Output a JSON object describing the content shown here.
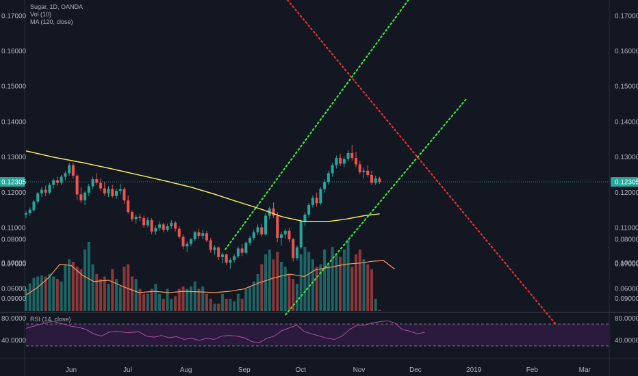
{
  "legend": {
    "title": "Sugar, 1D, OANDA",
    "vol": "Vol (10)",
    "ma": "MA (120, close)",
    "rsi": "RSI (14, close)"
  },
  "colors": {
    "background": "#131722",
    "up": "#26a69a",
    "down": "#ef5350",
    "ma": "#f5e663",
    "vol_ma": "#ff9a5c",
    "rsi_line": "#b44ea8",
    "rsi_band": "#2a1a3c",
    "trend_green": "#3ee83a",
    "trend_red": "#e8302c",
    "last_price": "#26a69a"
  },
  "chart_data": {
    "type": "candlestick",
    "price_axis": {
      "ticks": [
        "0.17000",
        "0.16000",
        "0.15000",
        "0.14000",
        "0.13000",
        "0.12000",
        "0.11000",
        "0.10000",
        "0.09000"
      ],
      "range": [
        0.0865,
        0.1745
      ]
    },
    "volume_axis": {
      "ticks": [
        "0.08000",
        "0.07000",
        "0.06000"
      ],
      "range": [
        0.051,
        0.0829
      ]
    },
    "rsi_axis": {
      "ticks": [
        "80.0000",
        "40.0000"
      ],
      "range": [
        10,
        90
      ],
      "bands": [
        70,
        30
      ]
    },
    "x_axis": {
      "labels": [
        "Jun",
        "Jul",
        "Aug",
        "Sep",
        "Oct",
        "Nov",
        "Dec",
        "2019",
        "Feb",
        "Mar"
      ],
      "label_days": [
        24,
        54,
        85,
        116,
        146,
        177,
        207,
        238,
        269,
        297
      ],
      "days_visible": [
        0,
        310
      ]
    },
    "last_price": "0.12305",
    "candles": [
      [
        0.1138,
        0.1148,
        0.1128,
        0.1142
      ],
      [
        0.1142,
        0.1158,
        0.1135,
        0.1152
      ],
      [
        0.115,
        0.118,
        0.1145,
        0.1175
      ],
      [
        0.1175,
        0.1202,
        0.1168,
        0.1198
      ],
      [
        0.1198,
        0.1215,
        0.1188,
        0.1208
      ],
      [
        0.1208,
        0.122,
        0.119,
        0.12
      ],
      [
        0.12,
        0.1228,
        0.1195,
        0.1222
      ],
      [
        0.1222,
        0.124,
        0.1212,
        0.1235
      ],
      [
        0.1235,
        0.1245,
        0.122,
        0.1228
      ],
      [
        0.1228,
        0.125,
        0.1222,
        0.1245
      ],
      [
        0.1245,
        0.126,
        0.1235,
        0.1255
      ],
      [
        0.1255,
        0.1285,
        0.1248,
        0.1278
      ],
      [
        0.1278,
        0.1285,
        0.124,
        0.1248
      ],
      [
        0.1248,
        0.1252,
        0.118,
        0.1195
      ],
      [
        0.1195,
        0.1215,
        0.117,
        0.1178
      ],
      [
        0.1178,
        0.1205,
        0.1165,
        0.12
      ],
      [
        0.12,
        0.1225,
        0.119,
        0.1218
      ],
      [
        0.1218,
        0.1245,
        0.121,
        0.1238
      ],
      [
        0.1238,
        0.1255,
        0.1222,
        0.1228
      ],
      [
        0.1228,
        0.124,
        0.1205,
        0.1212
      ],
      [
        0.1212,
        0.123,
        0.1192,
        0.1198
      ],
      [
        0.1198,
        0.1218,
        0.1188,
        0.121
      ],
      [
        0.121,
        0.1222,
        0.1185,
        0.119
      ],
      [
        0.119,
        0.1212,
        0.1182,
        0.1205
      ],
      [
        0.1205,
        0.1225,
        0.1195,
        0.121
      ],
      [
        0.121,
        0.1215,
        0.1168,
        0.1178
      ],
      [
        0.1178,
        0.1192,
        0.114,
        0.1145
      ],
      [
        0.1145,
        0.115,
        0.1118,
        0.1125
      ],
      [
        0.1125,
        0.1138,
        0.1112,
        0.1132
      ],
      [
        0.1132,
        0.114,
        0.112,
        0.1128
      ],
      [
        0.1128,
        0.1135,
        0.11,
        0.1108
      ],
      [
        0.1108,
        0.113,
        0.1102,
        0.1122
      ],
      [
        0.1122,
        0.1128,
        0.1082,
        0.109
      ],
      [
        0.109,
        0.1108,
        0.108,
        0.11
      ],
      [
        0.11,
        0.1118,
        0.1092,
        0.111
      ],
      [
        0.111,
        0.1115,
        0.1088,
        0.1095
      ],
      [
        0.1095,
        0.1112,
        0.109,
        0.1105
      ],
      [
        0.1105,
        0.1122,
        0.1098,
        0.1115
      ],
      [
        0.1115,
        0.112,
        0.109,
        0.1098
      ],
      [
        0.1098,
        0.1105,
        0.107,
        0.1075
      ],
      [
        0.1075,
        0.1082,
        0.104,
        0.1048
      ],
      [
        0.1048,
        0.1062,
        0.1032,
        0.1055
      ],
      [
        0.1055,
        0.1072,
        0.1048,
        0.1068
      ],
      [
        0.1068,
        0.1092,
        0.1062,
        0.1088
      ],
      [
        0.1088,
        0.1098,
        0.107,
        0.1078
      ],
      [
        0.1078,
        0.1095,
        0.1068,
        0.1085
      ],
      [
        0.1085,
        0.1092,
        0.106,
        0.1065
      ],
      [
        0.1065,
        0.1072,
        0.103,
        0.1038
      ],
      [
        0.1038,
        0.1052,
        0.1025,
        0.1045
      ],
      [
        0.1045,
        0.1048,
        0.101,
        0.1018
      ],
      [
        0.1018,
        0.1032,
        0.1,
        0.1025
      ],
      [
        0.1025,
        0.1028,
        0.0995,
        0.1002
      ],
      [
        0.1002,
        0.1015,
        0.0985,
        0.101
      ],
      [
        0.101,
        0.1025,
        0.1002,
        0.102
      ],
      [
        0.102,
        0.1048,
        0.1015,
        0.1042
      ],
      [
        0.1042,
        0.1055,
        0.102,
        0.103
      ],
      [
        0.103,
        0.1062,
        0.1025,
        0.1058
      ],
      [
        0.1058,
        0.1078,
        0.105,
        0.1072
      ],
      [
        0.1072,
        0.1095,
        0.1065,
        0.1088
      ],
      [
        0.1088,
        0.111,
        0.108,
        0.1102
      ],
      [
        0.1102,
        0.1112,
        0.1075,
        0.1082
      ],
      [
        0.1082,
        0.1142,
        0.1078,
        0.1135
      ],
      [
        0.1135,
        0.116,
        0.1125,
        0.1155
      ],
      [
        0.1155,
        0.1172,
        0.1128,
        0.1135
      ],
      [
        0.1135,
        0.1145,
        0.106,
        0.1072
      ],
      [
        0.1072,
        0.109,
        0.105,
        0.1082
      ],
      [
        0.1082,
        0.1098,
        0.107,
        0.1092
      ],
      [
        0.1092,
        0.11,
        0.106,
        0.1068
      ],
      [
        0.1068,
        0.1072,
        0.1005,
        0.1015
      ],
      [
        0.1015,
        0.105,
        0.1008,
        0.1045
      ],
      [
        0.1045,
        0.1125,
        0.104,
        0.1118
      ],
      [
        0.1118,
        0.1145,
        0.1105,
        0.1138
      ],
      [
        0.1138,
        0.117,
        0.113,
        0.1165
      ],
      [
        0.1165,
        0.1192,
        0.1158,
        0.1185
      ],
      [
        0.1185,
        0.12,
        0.116,
        0.117
      ],
      [
        0.117,
        0.1215,
        0.1165,
        0.121
      ],
      [
        0.121,
        0.1238,
        0.12,
        0.123
      ],
      [
        0.123,
        0.1262,
        0.1222,
        0.1255
      ],
      [
        0.1255,
        0.1285,
        0.1245,
        0.1278
      ],
      [
        0.1278,
        0.1305,
        0.1268,
        0.1298
      ],
      [
        0.1298,
        0.131,
        0.1275,
        0.1282
      ],
      [
        0.1282,
        0.1302,
        0.1272,
        0.1295
      ],
      [
        0.1295,
        0.132,
        0.1288,
        0.1312
      ],
      [
        0.1312,
        0.1335,
        0.129,
        0.1298
      ],
      [
        0.1298,
        0.1315,
        0.1272,
        0.128
      ],
      [
        0.128,
        0.129,
        0.1252,
        0.1258
      ],
      [
        0.1258,
        0.127,
        0.124,
        0.1262
      ],
      [
        0.1262,
        0.1278,
        0.1245,
        0.125
      ],
      [
        0.125,
        0.1262,
        0.1222,
        0.1228
      ],
      [
        0.1228,
        0.1248,
        0.1222,
        0.124
      ],
      [
        0.124,
        0.1245,
        0.1225,
        0.123
      ]
    ],
    "ma": [
      [
        0,
        0.1318
      ],
      [
        15,
        0.13
      ],
      [
        30,
        0.1285
      ],
      [
        45,
        0.1268
      ],
      [
        60,
        0.125
      ],
      [
        75,
        0.1232
      ],
      [
        88,
        0.1215
      ],
      [
        100,
        0.1196
      ],
      [
        112,
        0.1175
      ],
      [
        124,
        0.1155
      ],
      [
        136,
        0.1132
      ],
      [
        148,
        0.1118
      ],
      [
        160,
        0.1118
      ],
      [
        170,
        0.1125
      ],
      [
        180,
        0.1135
      ],
      [
        188,
        0.114
      ]
    ],
    "volume": [
      0.06,
      0.0622,
      0.0645,
      0.065,
      0.0655,
      0.065,
      0.066,
      0.065,
      0.064,
      0.063,
      0.07,
      0.072,
      0.071,
      0.069,
      0.068,
      0.076,
      0.079,
      0.07,
      0.066,
      0.064,
      0.065,
      0.062,
      0.068,
      0.064,
      0.061,
      0.069,
      0.07,
      0.065,
      0.064,
      0.06,
      0.058,
      0.058,
      0.06,
      0.062,
      0.058,
      0.056,
      0.06,
      0.056,
      0.057,
      0.06,
      0.061,
      0.06,
      0.061,
      0.063,
      0.06,
      0.061,
      0.058,
      0.056,
      0.054,
      0.054,
      0.058,
      0.056,
      0.056,
      0.055,
      0.058,
      0.056,
      0.06,
      0.061,
      0.063,
      0.066,
      0.07,
      0.074,
      0.076,
      0.072,
      0.075,
      0.071,
      0.069,
      0.066,
      0.064,
      0.062,
      0.074,
      0.077,
      0.075,
      0.072,
      0.069,
      0.07,
      0.076,
      0.07,
      0.077,
      0.074,
      0.073,
      0.076,
      0.08,
      0.069,
      0.074,
      0.076,
      0.072,
      0.07,
      0.068,
      0.056,
      0.0515
    ],
    "vol_ma": [
      [
        0,
        0.0575
      ],
      [
        6,
        0.0605
      ],
      [
        12,
        0.0645
      ],
      [
        18,
        0.07
      ],
      [
        24,
        0.0695
      ],
      [
        30,
        0.0655
      ],
      [
        36,
        0.063
      ],
      [
        44,
        0.0635
      ],
      [
        52,
        0.0608
      ],
      [
        60,
        0.0585
      ],
      [
        68,
        0.059
      ],
      [
        76,
        0.0585
      ],
      [
        84,
        0.059
      ],
      [
        92,
        0.0588
      ],
      [
        100,
        0.0585
      ],
      [
        108,
        0.059
      ],
      [
        116,
        0.06
      ],
      [
        124,
        0.0625
      ],
      [
        132,
        0.0645
      ],
      [
        140,
        0.066
      ],
      [
        148,
        0.065
      ],
      [
        154,
        0.0678
      ],
      [
        162,
        0.0688
      ],
      [
        170,
        0.07
      ],
      [
        178,
        0.0705
      ],
      [
        184,
        0.0712
      ],
      [
        190,
        0.0715
      ],
      [
        196,
        0.068
      ]
    ],
    "rsi": [
      [
        0,
        62
      ],
      [
        8,
        70
      ],
      [
        14,
        75
      ],
      [
        20,
        70
      ],
      [
        24,
        66
      ],
      [
        28,
        64
      ],
      [
        32,
        60
      ],
      [
        36,
        52
      ],
      [
        40,
        48
      ],
      [
        44,
        55
      ],
      [
        48,
        57
      ],
      [
        54,
        54
      ],
      [
        60,
        56
      ],
      [
        64,
        48
      ],
      [
        68,
        46
      ],
      [
        72,
        49
      ],
      [
        76,
        45
      ],
      [
        80,
        47
      ],
      [
        84,
        42
      ],
      [
        88,
        44
      ],
      [
        92,
        40
      ],
      [
        96,
        44
      ],
      [
        100,
        42
      ],
      [
        104,
        48
      ],
      [
        108,
        49
      ],
      [
        112,
        48
      ],
      [
        116,
        45
      ],
      [
        120,
        38
      ],
      [
        124,
        36
      ],
      [
        128,
        44
      ],
      [
        132,
        48
      ],
      [
        136,
        58
      ],
      [
        140,
        63
      ],
      [
        144,
        68
      ],
      [
        148,
        56
      ],
      [
        152,
        52
      ],
      [
        156,
        48
      ],
      [
        160,
        44
      ],
      [
        164,
        42
      ],
      [
        168,
        48
      ],
      [
        172,
        60
      ],
      [
        176,
        68
      ],
      [
        180,
        68
      ],
      [
        184,
        72
      ],
      [
        188,
        74
      ],
      [
        192,
        76
      ],
      [
        196,
        72
      ],
      [
        200,
        60
      ],
      [
        204,
        57
      ],
      [
        208,
        52
      ],
      [
        212,
        55
      ]
    ],
    "trendlines": [
      {
        "color": "green",
        "from": [
          106,
          0.104
        ],
        "to": [
          206,
          0.1765
        ]
      },
      {
        "color": "green",
        "from": [
          138,
          0.0855
        ],
        "to": [
          234,
          0.1465
        ]
      },
      {
        "color": "red",
        "from": [
          132,
          0.179
        ],
        "to": [
          282,
          0.0825
        ]
      }
    ]
  }
}
